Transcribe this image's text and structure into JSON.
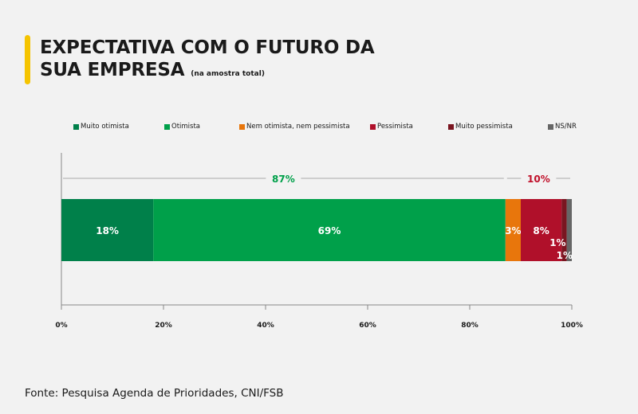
{
  "header": {
    "title_line1": "EXPECTATIVA COM O FUTURO DA",
    "title_line2": "SUA EMPRESA",
    "subtitle": "(na amostra total)"
  },
  "colors": {
    "muito_otimista": "#00804a",
    "otimista": "#00a04a",
    "neutro": "#e8760c",
    "pessimista": "#b0102a",
    "muito_pessimista": "#7a1520",
    "ns_nr": "#666666",
    "accent": "#f5c400",
    "positive_text": "#00a04a",
    "negative_text": "#c0102a"
  },
  "chart_data": {
    "type": "bar",
    "orientation": "horizontal",
    "stacked": true,
    "title": "EXPECTATIVA COM O FUTURO DA SUA EMPRESA",
    "subtitle": "(na amostra total)",
    "legend_position": "top",
    "xlim": [
      0,
      100
    ],
    "x_ticks": [
      "0%",
      "20%",
      "40%",
      "60%",
      "80%",
      "100%"
    ],
    "x_tick_values": [
      0,
      20,
      40,
      60,
      80,
      100
    ],
    "series": [
      {
        "name": "Muito otimista",
        "value": 18,
        "label": "18%",
        "color": "#00804a"
      },
      {
        "name": "Otimista",
        "value": 69,
        "label": "69%",
        "color": "#00a04a"
      },
      {
        "name": "Nem otimista, nem pessimista",
        "value": 3,
        "label": "3%",
        "color": "#e8760c"
      },
      {
        "name": "Pessimista",
        "value": 8,
        "label": "8%",
        "color": "#b0102a"
      },
      {
        "name": "Muito pessimista",
        "value": 1,
        "label": "1%",
        "color": "#7a1520"
      },
      {
        "name": "NS/NR",
        "value": 1,
        "label": "1%",
        "color": "#666666"
      }
    ],
    "annotations": [
      {
        "text": "87%",
        "from": 0,
        "to": 87,
        "color": "#00a04a"
      },
      {
        "text": "10%",
        "from": 87,
        "to": 100,
        "color": "#c0102a"
      }
    ]
  },
  "footer": {
    "source": "Fonte: Pesquisa Agenda de Prioridades, CNI/FSB"
  }
}
